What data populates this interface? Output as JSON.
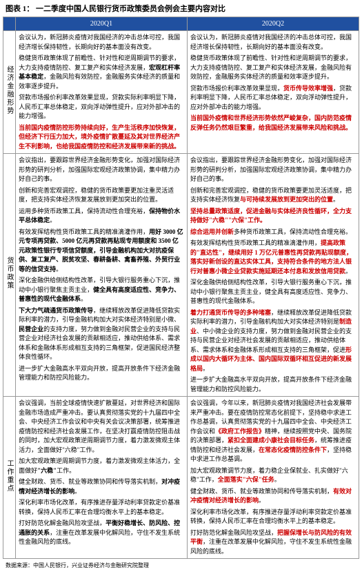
{
  "title": "图表 1：  一二季度中国人民银行货币政策委员会例会主要内容对比",
  "headers": {
    "col1": "2020Q1",
    "col2": "2020Q2"
  },
  "sections": [
    {
      "label": "经济金融形势",
      "left": [
        {
          "segments": [
            {
              "t": "会议认为，新冠肺炎疫情对我国经济的冲击总体可控，我国经济增长保持韧性，长期向好的基本面没有改变。"
            }
          ]
        },
        {
          "segments": [
            {
              "t": "稳健货币政策体现了前瞻性、针对性和逆周期调节的要求，大力支持疫情防控、复工复产和实体经济发展，"
            },
            {
              "t": "宏观杠杆率基本稳定",
              "c": "b-black"
            },
            {
              "t": "，金融风险有效防控，金融服务实体经济的质量和效率逐步提升。"
            }
          ]
        },
        {
          "segments": [
            {
              "t": "贷款市场报价利率改革效果显现，贷款实际利率明显下降，人民币汇率总体稳定，双向浮动弹性提升，应对外部冲击的能力增强。"
            }
          ]
        },
        {
          "segments": [
            {
              "t": "当前国内疫情防控形势持续向好，生产生活秩序加快恢复，但经济下行压力加大，境外疫情扩散蔓延及其对世界经济产生不利影响，也给我国疫情防控和经济发展带来新的挑战。",
              "c": "b-red"
            }
          ]
        }
      ],
      "right": [
        {
          "segments": [
            {
              "t": "会议认为，新冠肺炎疫情对我国经济的冲击总体可控，我国经济增长保持韧性，长期向好的基本面没有改变。"
            }
          ]
        },
        {
          "segments": [
            {
              "t": "稳健货币政策体现了前瞻性、针对性和逆周期调节的要求，大力支持疫情防控、复工复产和实体经济发展，金融风险有效防控，金融服务实体经济的质量和效率逐步提升。"
            }
          ]
        },
        {
          "segments": [
            {
              "t": "贷款市场报价利率改革效果显现，"
            },
            {
              "t": "货币传导效率增强",
              "c": "b-red"
            },
            {
              "t": "，贷款利率明显下降，人民币汇率总体稳定，双向浮动弹性提升，应对外部冲击的能力增强。"
            }
          ]
        },
        {
          "segments": [
            {
              "t": "当前国外疫情和世界经济形势依然严峻复杂，国内防范疫情反弹任务仍然艰巨繁重，给我国经济发展带来风险和挑战。",
              "c": "b-red"
            }
          ]
        }
      ]
    },
    {
      "label": "货币政策",
      "left": [
        {
          "segments": [
            {
              "t": "会议指出，要跟踪世界经济金融形势变化，加强对国际经济形势的研判分析，加强国际宏观经济政策协调，集中精力办好自己的事。"
            }
          ]
        },
        {
          "segments": [
            {
              "t": "创新和完善宏观调控，稳健的货币政策要更加注重灵活适度，把支持实体经济恢复发展放到更加突出的位置。"
            }
          ]
        },
        {
          "segments": [
            {
              "t": ""
            }
          ]
        },
        {
          "segments": [
            {
              "t": "运用多种货币政策工具，保持流动性合理充裕，"
            },
            {
              "t": "保持物价水平总体稳定",
              "c": "b-black"
            },
            {
              "t": "。"
            }
          ]
        },
        {
          "segments": [
            {
              "t": "有效发挥结构性货币政策工具的精准滴灌作用，"
            },
            {
              "t": "用好 3000 亿元专项再贷款、5000 亿元再贷款再贴现专用额度和 3500 亿元政策性银行专项信贷额度，引导金融机构加大对抗疫保供、复工复产、脱贫攻坚、春耕备耕、禽畜养殖、外贸行业等的信贷支持",
              "c": "b-black"
            },
            {
              "t": "。"
            }
          ]
        },
        {
          "segments": [
            {
              "t": "深化金融供给侧结构性改革，引导大银行服务重心下沉，推动中小银行聚焦主贡主业，"
            },
            {
              "t": "健全具有高度适应性、竞争力、普惠性的现代金融体系",
              "c": "b-black"
            },
            {
              "t": "。"
            }
          ]
        },
        {
          "segments": [
            {
              "t": "下大力气疏通货币政策传导",
              "c": "b-black"
            },
            {
              "t": "，继续释放改革促进降低贷款实际利率的潜力，引导金融机构加大对实体经济特别是小微、"
            },
            {
              "t": "民营企业",
              "c": "b-black"
            },
            {
              "t": "的支持力度，努力做到金融对民营企业的支持与民营企业对经济社会发展的贡献相适应，推动供给体系、需求体系和金融体系形成相互支持的三角框架，促进国民经济整体良性循环。"
            }
          ]
        },
        {
          "segments": [
            {
              "t": "进一步扩大金融高水平双向开放，提高开放条件下经济金融管理能力和防控风险能力。"
            }
          ]
        }
      ],
      "right": [
        {
          "segments": [
            {
              "t": "会议指出，要跟踪世界经济金融形势变化，加强对国际经济形势的研判分析，加强国际宏观经济政策协调，集中精力办好自己的事。"
            }
          ]
        },
        {
          "segments": [
            {
              "t": "创新和完善宏观调控，稳健的货币政策要更加灵活适度，把支持实体经济恢复"
            },
            {
              "t": "与可持续发展放到更加突出的位置",
              "c": "b-red"
            },
            {
              "t": "。"
            }
          ]
        },
        {
          "segments": [
            {
              "t": "坚持总量政策适度，促进金融与实体经济良性循环，全力支持做好\"六稳\"\"六保\"工作。",
              "c": "b-red"
            }
          ]
        },
        {
          "segments": [
            {
              "t": "综合运用并创新",
              "c": "b-red"
            },
            {
              "t": "多种货币政策工具，保持流动性合理充裕。"
            }
          ]
        },
        {
          "segments": [
            {
              "t": "有效发挥结构性货币政策工具的精准滴灌作用，"
            },
            {
              "t": "提高政策的\"直达性\"，继续用好 1 万亿元普惠性再贷款再贴现额度，落实好新创设的直达实体工具，支持符合条件的地方法人银行对普惠小微企业贷款实施延期还本付息和发放信用贷款",
              "c": "b-red"
            },
            {
              "t": "。"
            }
          ]
        },
        {
          "segments": [
            {
              "t": "深化金融供给侧结构性改革，引导大银行服务重心下沉，推动中小银行聚焦主贡主业，健全具有高度适应性、竞争力、普惠性的现代金融体系。"
            }
          ]
        },
        {
          "segments": [
            {
              "t": "着力打通货币传导的多种堵塞",
              "c": "b-red"
            },
            {
              "t": "，继续释放改革促进降低贷款实际利率的潜力，引导金融机构加大对实体经济特别是"
            },
            {
              "t": "制造业",
              "c": "b-red"
            },
            {
              "t": "、中小微企业的支持力度，努力做到金融对民营企业的支持与民营企业对经济社会发展的贡献相适应，推动供给体系、需求体系和金融体系形成相互支持的三角框架，促进"
            },
            {
              "t": "形成以国内大循环为主体、国内国际双循环相互促进的新发展格局",
              "c": "b-red"
            },
            {
              "t": "。"
            }
          ]
        },
        {
          "segments": [
            {
              "t": "进一步扩大金融高水平双向开放，提高开放条件下经济金融管理能力和防控风险能力。"
            }
          ]
        }
      ]
    },
    {
      "label": "工作重点",
      "left": [
        {
          "segments": [
            {
              "t": "会议强调，当前全球疫情快速扩散蔓延，对世界经济和国际金融市场造成严重冲击。要认真贯彻落实党的十九届四中全会、中央经济工作会议和中央有关会议决策部署，统筹推进疫情防控和经济社会发展工作，在坚决打赢疫情防控阻击战的同时，加大宏观政策逆周期调节力度，着力激发微观主体活力，全面做好\"六稳\"工作。"
            }
          ]
        },
        {
          "segments": [
            {
              "t": "加大宏观政策逆周期调节力度，着力激发微观主体活力，全面做好"
            },
            {
              "t": "\"六稳\"",
              "c": "b-black"
            },
            {
              "t": "工作。"
            }
          ]
        },
        {
          "segments": [
            {
              "t": "健全财政、货币、就业等政策协同和传导落实机制，"
            },
            {
              "t": "对冲疫情对经济增长的影响",
              "c": "b-black"
            },
            {
              "t": "。"
            }
          ]
        },
        {
          "segments": [
            {
              "t": "深化利率市场化改革，有序推进存量浮动利率贷款定价基准转换，保持人民币汇率在合理均衡水平上的基本稳定。"
            }
          ]
        },
        {
          "segments": [
            {
              "t": "打好防范化解金融风险攻坚战，"
            },
            {
              "t": "平衡好稳增长、防风险、控通胀的关系",
              "c": "b-black"
            },
            {
              "t": "，注重在改革发展中化解风险，守住不发生系统性金融风险的底线。"
            }
          ]
        }
      ],
      "right": [
        {
          "segments": [
            {
              "t": "会议强调，今年以来，新冠肺炎疫情对我国经济社会发展带来严重冲击。要在疫情防控常态化前提下，坚持稳中求进工作总基调，认真贯彻落实党的十九届四中全会、中央经济工作会议和"
            },
            {
              "t": "《政府工作报告》",
              "c": "b-red"
            },
            {
              "t": "精神，继续按照党中央、国务院的决策部署，"
            },
            {
              "t": "紧扣全面建成小康社会目标任务",
              "c": "b-red"
            },
            {
              "t": "，统筹推进疫情防控和经济社会发展，"
            },
            {
              "t": "在常态化疫情防控条件下",
              "c": "b-red"
            },
            {
              "t": "，坚持稳中求进工作总基调。"
            }
          ]
        },
        {
          "segments": [
            {
              "t": "加大宏观政策调节力度，着力稳企业保就业、扎实做好\"六稳\"工作，"
            },
            {
              "t": "全面落实\"六保\"任务",
              "c": "b-red"
            },
            {
              "t": "。"
            }
          ]
        },
        {
          "segments": [
            {
              "t": "健全财政、货币、就业等政策协同和传导落实机制，"
            },
            {
              "t": "有效对冲疫情对经济增长的影响",
              "c": "b-red"
            },
            {
              "t": "。"
            }
          ]
        },
        {
          "segments": [
            {
              "t": "深化利率市场化改革，有序推进存量浮动利率贷款定价基准转换，保持人民币汇率在合理均衡水平上的基本稳定。"
            }
          ]
        },
        {
          "segments": [
            {
              "t": "打好防范化解金融风险攻坚战，"
            },
            {
              "t": "把握保增长与防风险的有效平衡",
              "c": "b-red"
            },
            {
              "t": "，注重在改革发展中化解风险，守住不发生系统性金融风险的底线。"
            }
          ]
        }
      ]
    }
  ],
  "source": "数据来源：中国人民银行，兴业证券经济与金融研究院整理"
}
